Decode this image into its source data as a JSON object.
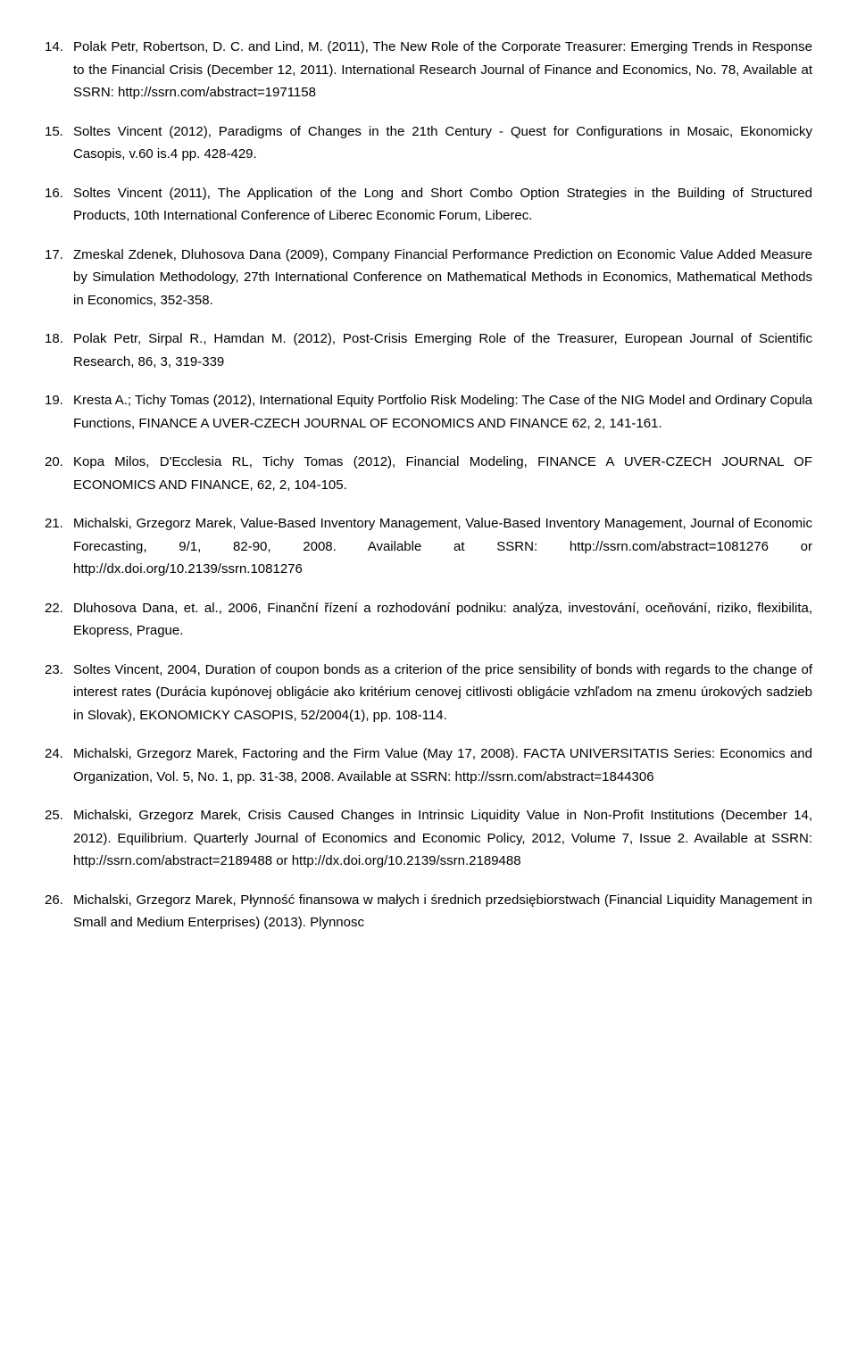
{
  "refs": [
    {
      "n": "14.",
      "t": "Polak Petr, Robertson, D. C. and Lind, M. (2011), The New Role of the Corporate Treasurer: Emerging Trends in Response to the Financial Crisis (December 12, 2011). International Research Journal of Finance and Economics, No. 78, Available at SSRN: http://ssrn.com/abstract=1971158"
    },
    {
      "n": "15.",
      "t": "Soltes Vincent (2012), Paradigms of Changes in the 21th Century - Quest for Configurations in Mosaic, Ekonomicky Casopis, v.60 is.4 pp. 428-429."
    },
    {
      "n": "16.",
      "t": "Soltes Vincent (2011), The Application of the Long and Short Combo Option Strategies in the Building of Structured Products, 10th International Conference of Liberec Economic Forum, Liberec."
    },
    {
      "n": "17.",
      "t": "Zmeskal Zdenek, Dluhosova Dana (2009), Company Financial Performance Prediction on Economic Value Added Measure by Simulation Methodology, 27th International Conference on Mathematical Methods in Economics, Mathematical Methods in Economics, 352-358."
    },
    {
      "n": "18.",
      "t": "Polak Petr, Sirpal R., Hamdan M. (2012), Post-Crisis Emerging Role of the Treasurer, European Journal of Scientific Research, 86, 3, 319-339"
    },
    {
      "n": "19.",
      "t": "Kresta A.; Tichy Tomas (2012), International Equity Portfolio Risk Modeling: The Case of the NIG Model and Ordinary Copula Functions, FINANCE A UVER-CZECH JOURNAL OF ECONOMICS AND FINANCE 62, 2, 141-161."
    },
    {
      "n": "20.",
      "t": "Kopa Milos, D'Ecclesia RL, Tichy Tomas (2012), Financial Modeling, FINANCE A UVER-CZECH JOURNAL OF ECONOMICS AND FINANCE, 62, 2, 104-105."
    },
    {
      "n": "21.",
      "t": "Michalski, Grzegorz Marek, Value-Based Inventory Management, Value-Based Inventory Management, Journal of Economic Forecasting, 9/1, 82-90, 2008. Available at SSRN: http://ssrn.com/abstract=1081276 or http://dx.doi.org/10.2139/ssrn.1081276"
    },
    {
      "n": "22.",
      "t": "Dluhosova Dana, et. al., 2006, Finanční řízení a rozhodování podniku: analýza, investování, oceňování, riziko, flexibilita, Ekopress, Prague."
    },
    {
      "n": "23.",
      "t": "Soltes Vincent, 2004, Duration of coupon bonds as a criterion of the price sensibility of bonds with regards to the change of interest rates (Durácia kupónovej obligácie ako kritérium cenovej citlivosti obligácie vzhľadom na zmenu úrokových sadzieb in Slovak), EKONOMICKY CASOPIS, 52/2004(1), pp. 108-114."
    },
    {
      "n": "24.",
      "t": "Michalski, Grzegorz Marek, Factoring and the Firm Value (May 17, 2008). FACTA UNIVERSITATIS Series: Economics and Organization, Vol. 5, No. 1, pp. 31-38, 2008. Available at SSRN: http://ssrn.com/abstract=1844306"
    },
    {
      "n": "25.",
      "t": "Michalski, Grzegorz Marek, Crisis Caused Changes in Intrinsic Liquidity Value in Non-Profit Institutions (December 14, 2012). Equilibrium. Quarterly Journal of Economics and Economic Policy, 2012, Volume 7, Issue 2. Available at SSRN: http://ssrn.com/abstract=2189488 or http://dx.doi.org/10.2139/ssrn.2189488"
    },
    {
      "n": "26.",
      "t": "Michalski, Grzegorz Marek, Płynność finansowa w małych i średnich przedsiębiorstwach (Financial Liquidity Management in Small and Medium Enterprises) (2013). Plynnosc"
    }
  ]
}
